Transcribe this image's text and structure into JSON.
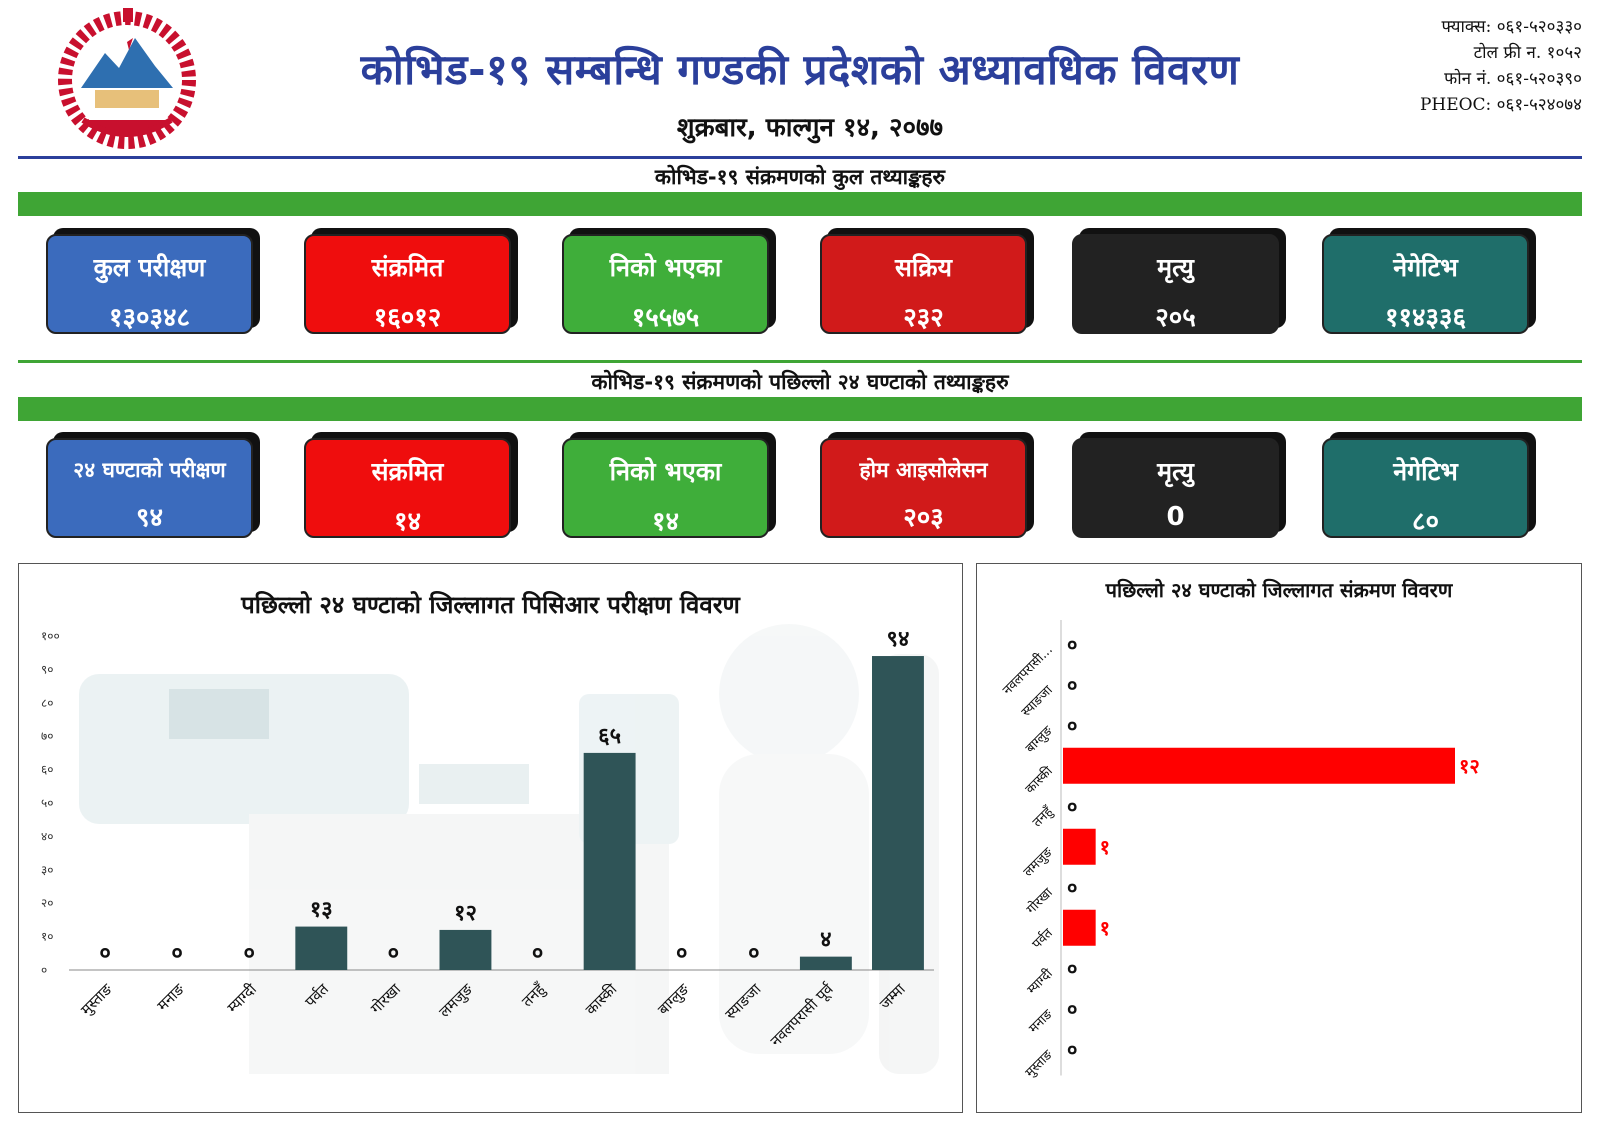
{
  "header": {
    "title": "कोभिड-१९ सम्बन्धि गण्डकी प्रदेशको अध्यावधिक विवरण",
    "date": "शुक्रबार, फाल्गुन १४, २०७७",
    "contact": {
      "fax": "फ्याक्स: ०६१-५२०३३०",
      "toll_free": "टोल फ्री न. १०५२",
      "phone": "फोन नं. ०६१-५२०३९०",
      "pheoc": "PHEOC: ०६१-५२४०७४"
    }
  },
  "total": {
    "heading": "कोभिड-१९ संक्रमणको कुल तथ्याङ्कहरु",
    "cards": [
      {
        "label": "कुल परीक्षण",
        "value": "१३०३४८",
        "color": "#3b6bbd"
      },
      {
        "label": "संक्रमित",
        "value": "१६०१२",
        "color": "#ef0d0d"
      },
      {
        "label": "निको भएका",
        "value": "१५५७५",
        "color": "#3fae3a"
      },
      {
        "label": "सक्रिय",
        "value": "२३२",
        "color": "#d11a1a"
      },
      {
        "label": "मृत्यु",
        "value": "२०५",
        "color": "#222222"
      },
      {
        "label": "नेगेटिभ",
        "value": "११४३३६",
        "color": "#1f6e6a"
      }
    ]
  },
  "last24": {
    "heading": "कोभिड-१९ संक्रमणको पछिल्लो २४ घण्टाको तथ्याङ्कहरु",
    "cards": [
      {
        "label": "२४ घण्टाको परीक्षण",
        "value": "९४",
        "color": "#3b6bbd"
      },
      {
        "label": "संक्रमित",
        "value": "१४",
        "color": "#ef0d0d"
      },
      {
        "label": "निको भएका",
        "value": "१४",
        "color": "#3fae3a"
      },
      {
        "label": "होम आइसोलेसन",
        "value": "२०३",
        "color": "#d11a1a"
      },
      {
        "label": "मृत्यु",
        "value": "0",
        "color": "#222222"
      },
      {
        "label": "नेगेटिभ",
        "value": "८०",
        "color": "#1f6e6a"
      }
    ]
  },
  "chart_data": [
    {
      "type": "bar",
      "title": "पछिल्लो २४ घण्टाको जिल्लागत पिसिआर परीक्षण विवरण",
      "categories": [
        "मुस्ताङ",
        "मनाङ",
        "म्याग्दी",
        "पर्वत",
        "गोरखा",
        "लमजुङ",
        "तनहुँ",
        "कास्की",
        "बाग्लुङ",
        "स्याङजा",
        "नवलपरासी पूर्व",
        "जम्मा"
      ],
      "values": [
        0,
        0,
        0,
        13,
        0,
        12,
        0,
        65,
        0,
        0,
        4,
        94
      ],
      "value_labels": [
        "०",
        "०",
        "०",
        "१३",
        "०",
        "१२",
        "०",
        "६५",
        "०",
        "०",
        "४",
        "९४"
      ],
      "yticks": [
        "०",
        "१०",
        "२०",
        "३०",
        "४०",
        "५०",
        "६०",
        "७०",
        "८०",
        "९०",
        "१००"
      ],
      "ylim": [
        0,
        100
      ],
      "bar_color": "#2f5457"
    },
    {
      "type": "bar",
      "orientation": "horizontal",
      "title": "पछिल्लो २४ घण्टाको जिल्लागत संक्रमण विवरण",
      "categories": [
        "नवलपरासी...",
        "स्याङजा",
        "बाग्लुङ",
        "कास्की",
        "तनहुँ",
        "लमजुङ",
        "गोरखा",
        "पर्वत",
        "म्याग्दी",
        "मनाङ",
        "मुस्ताङ"
      ],
      "values": [
        0,
        0,
        0,
        12,
        0,
        1,
        0,
        1,
        0,
        0,
        0
      ],
      "value_labels": [
        "०",
        "०",
        "०",
        "१२",
        "०",
        "१",
        "०",
        "१",
        "०",
        "०",
        "०"
      ],
      "xlim": [
        0,
        12
      ],
      "bar_color": "#ff0000"
    }
  ]
}
